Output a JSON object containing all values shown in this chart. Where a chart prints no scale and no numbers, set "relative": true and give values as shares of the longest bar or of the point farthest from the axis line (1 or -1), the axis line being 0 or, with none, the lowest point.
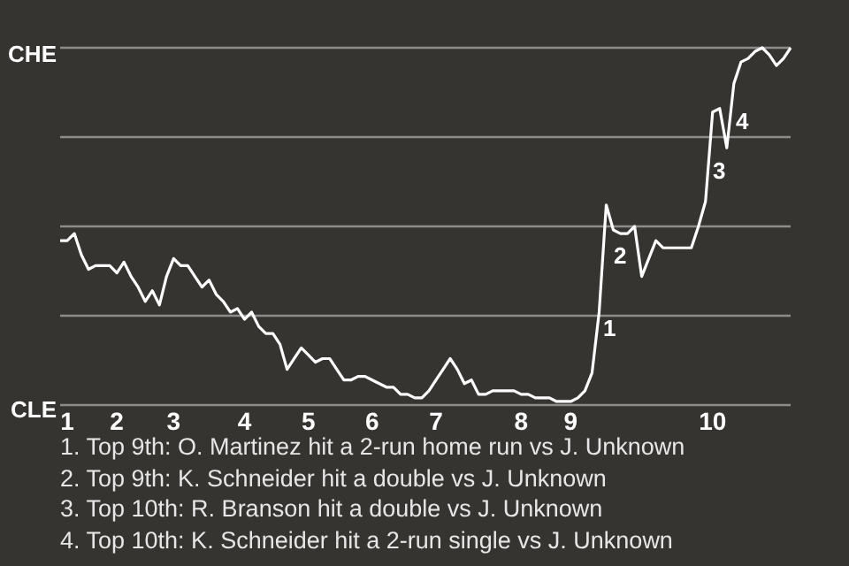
{
  "chart_data": {
    "type": "line",
    "relative": true,
    "categories": [
      null,
      "1",
      null,
      null,
      null,
      null,
      null,
      null,
      "2",
      null,
      null,
      null,
      null,
      null,
      null,
      null,
      "3",
      null,
      null,
      null,
      null,
      null,
      null,
      null,
      null,
      null,
      "4",
      null,
      null,
      null,
      null,
      null,
      null,
      null,
      null,
      "5",
      null,
      null,
      null,
      null,
      null,
      null,
      null,
      null,
      "6",
      null,
      null,
      null,
      null,
      null,
      null,
      null,
      null,
      "7",
      null,
      null,
      null,
      null,
      null,
      null,
      null,
      null,
      null,
      null,
      null,
      "8",
      null,
      null,
      null,
      null,
      null,
      null,
      "9",
      null,
      null,
      null,
      null,
      null,
      null,
      null,
      null,
      null,
      null,
      null,
      null,
      null,
      null,
      null,
      null,
      null,
      null,
      null,
      "10",
      null,
      null,
      null,
      null,
      null,
      null,
      null,
      null,
      null,
      null,
      null
    ],
    "series": [
      {
        "color": "#ffffff",
        "values": [
          0.46,
          0.46,
          0.48,
          0.42,
          0.38,
          0.39,
          0.39,
          0.39,
          0.37,
          0.4,
          0.36,
          0.33,
          0.29,
          0.32,
          0.28,
          0.36,
          0.41,
          0.39,
          0.39,
          0.36,
          0.33,
          0.35,
          0.31,
          0.29,
          0.26,
          0.27,
          0.24,
          0.26,
          0.22,
          0.2,
          0.2,
          0.17,
          0.1,
          0.13,
          0.16,
          0.14,
          0.12,
          0.13,
          0.13,
          0.1,
          0.07,
          0.07,
          0.08,
          0.08,
          0.07,
          0.06,
          0.05,
          0.05,
          0.03,
          0.03,
          0.02,
          0.02,
          0.04,
          0.07,
          0.1,
          0.13,
          0.1,
          0.06,
          0.07,
          0.03,
          0.03,
          0.04,
          0.04,
          0.04,
          0.04,
          0.03,
          0.03,
          0.02,
          0.02,
          0.02,
          0.01,
          0.01,
          0.01,
          0.02,
          0.04,
          0.09,
          0.26,
          0.56,
          0.49,
          0.48,
          0.48,
          0.5,
          0.36,
          0.41,
          0.46,
          0.44,
          0.44,
          0.44,
          0.44,
          0.44,
          0.5,
          0.57,
          0.82,
          0.83,
          0.72,
          0.9,
          0.96,
          0.97,
          0.99,
          1,
          0.98,
          0.95,
          0.97,
          1
        ]
      }
    ],
    "grid": "y",
    "marker": "none",
    "line_style": "solid",
    "annotations": [
      "CHE",
      "CLE",
      "1",
      "2",
      "3",
      "4",
      "1. Top 9th: O. Martinez hit a 2-run home run vs J. Unknown",
      "2. Top 9th: K. Schneider hit a double vs J. Unknown",
      "3. Top 10th: R. Branson hit a double vs J. Unknown",
      "4. Top 10th: K. Schneider hit a 2-run single vs J. Unknown"
    ]
  }
}
